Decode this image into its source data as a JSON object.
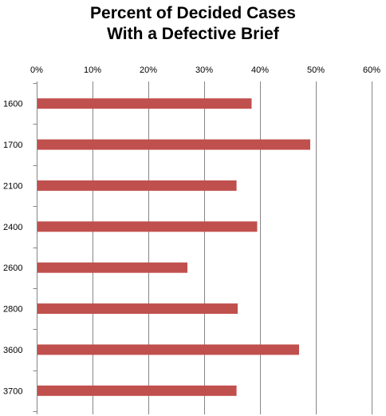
{
  "chart_data": {
    "type": "bar",
    "orientation": "horizontal",
    "title_lines": [
      "Percent of Decided Cases",
      "With a Defective Brief"
    ],
    "categories": [
      "1600",
      "1700",
      "2100",
      "2400",
      "2600",
      "2800",
      "3600",
      "3700"
    ],
    "values": [
      38.5,
      49.0,
      35.8,
      39.5,
      27.0,
      36.0,
      47.0,
      35.8
    ],
    "value_unit": "%",
    "xlim": [
      0,
      60
    ],
    "x_ticks": [
      0,
      10,
      20,
      30,
      40,
      50,
      60
    ],
    "x_tick_labels": [
      "0%",
      "10%",
      "20%",
      "30%",
      "40%",
      "50%",
      "60%"
    ],
    "x_axis_position": "top",
    "grid": true,
    "legend": "none",
    "bar_color": "#C0504D"
  }
}
